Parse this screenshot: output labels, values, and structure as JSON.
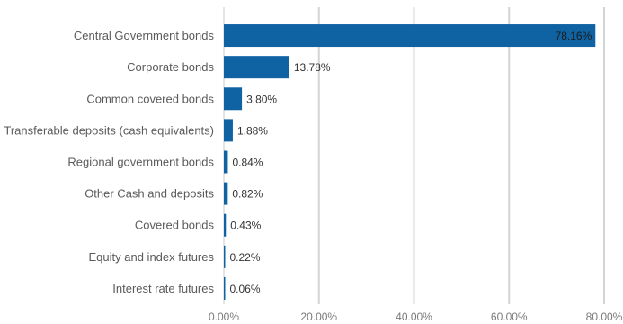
{
  "chart_data": {
    "type": "bar",
    "orientation": "horizontal",
    "categories": [
      "Central Government bonds",
      "Corporate bonds",
      "Common covered bonds",
      "Transferable deposits (cash equivalents)",
      "Regional government bonds",
      "Other Cash and deposits",
      "Covered bonds",
      "Equity and index futures",
      "Interest rate futures"
    ],
    "values": [
      78.16,
      13.78,
      3.8,
      1.88,
      0.84,
      0.82,
      0.43,
      0.22,
      0.06
    ],
    "value_labels": [
      "78.16%",
      "13.78%",
      "3.80%",
      "1.88%",
      "0.84%",
      "0.82%",
      "0.43%",
      "0.22%",
      "0.06%"
    ],
    "xlim": [
      0,
      80
    ],
    "x_ticks": [
      0,
      20,
      40,
      60,
      80
    ],
    "x_tick_labels": [
      "0.00%",
      "20.00%",
      "40.00%",
      "60.00%",
      "80.00%"
    ],
    "grid": true,
    "legend": "none",
    "bar_color": "#0f63a3",
    "title": "",
    "xlabel": "",
    "ylabel": ""
  }
}
